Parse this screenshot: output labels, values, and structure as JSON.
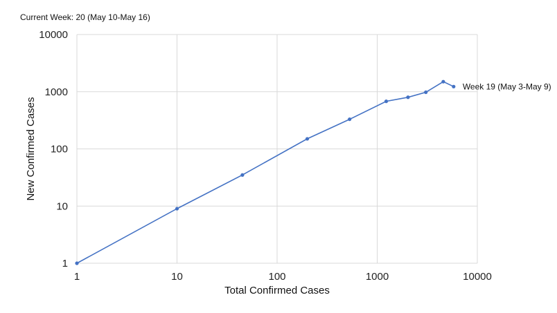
{
  "header": {
    "current_week": "Current Week: 20 (May 10-May 16)"
  },
  "chart_data": {
    "type": "line",
    "title": "",
    "xlabel": "Total Confirmed Cases",
    "ylabel": "New Confirmed Cases",
    "xscale": "log",
    "yscale": "log",
    "xlim": [
      1,
      10000
    ],
    "ylim": [
      1,
      10000
    ],
    "x_ticks": [
      "1",
      "10",
      "100",
      "1000",
      "10000"
    ],
    "y_ticks": [
      "1",
      "10",
      "100",
      "1000",
      "10000"
    ],
    "grid": true,
    "series": [
      {
        "color": "#4472c4",
        "x": [
          1,
          10,
          45,
          200,
          530,
          1230,
          2030,
          3060,
          4570,
          5800
        ],
        "y": [
          1,
          9,
          35,
          150,
          330,
          680,
          800,
          980,
          1500,
          1230
        ]
      }
    ],
    "annotation": {
      "text": "Week 19 (May 3-May 9)",
      "point_index": 9
    }
  }
}
